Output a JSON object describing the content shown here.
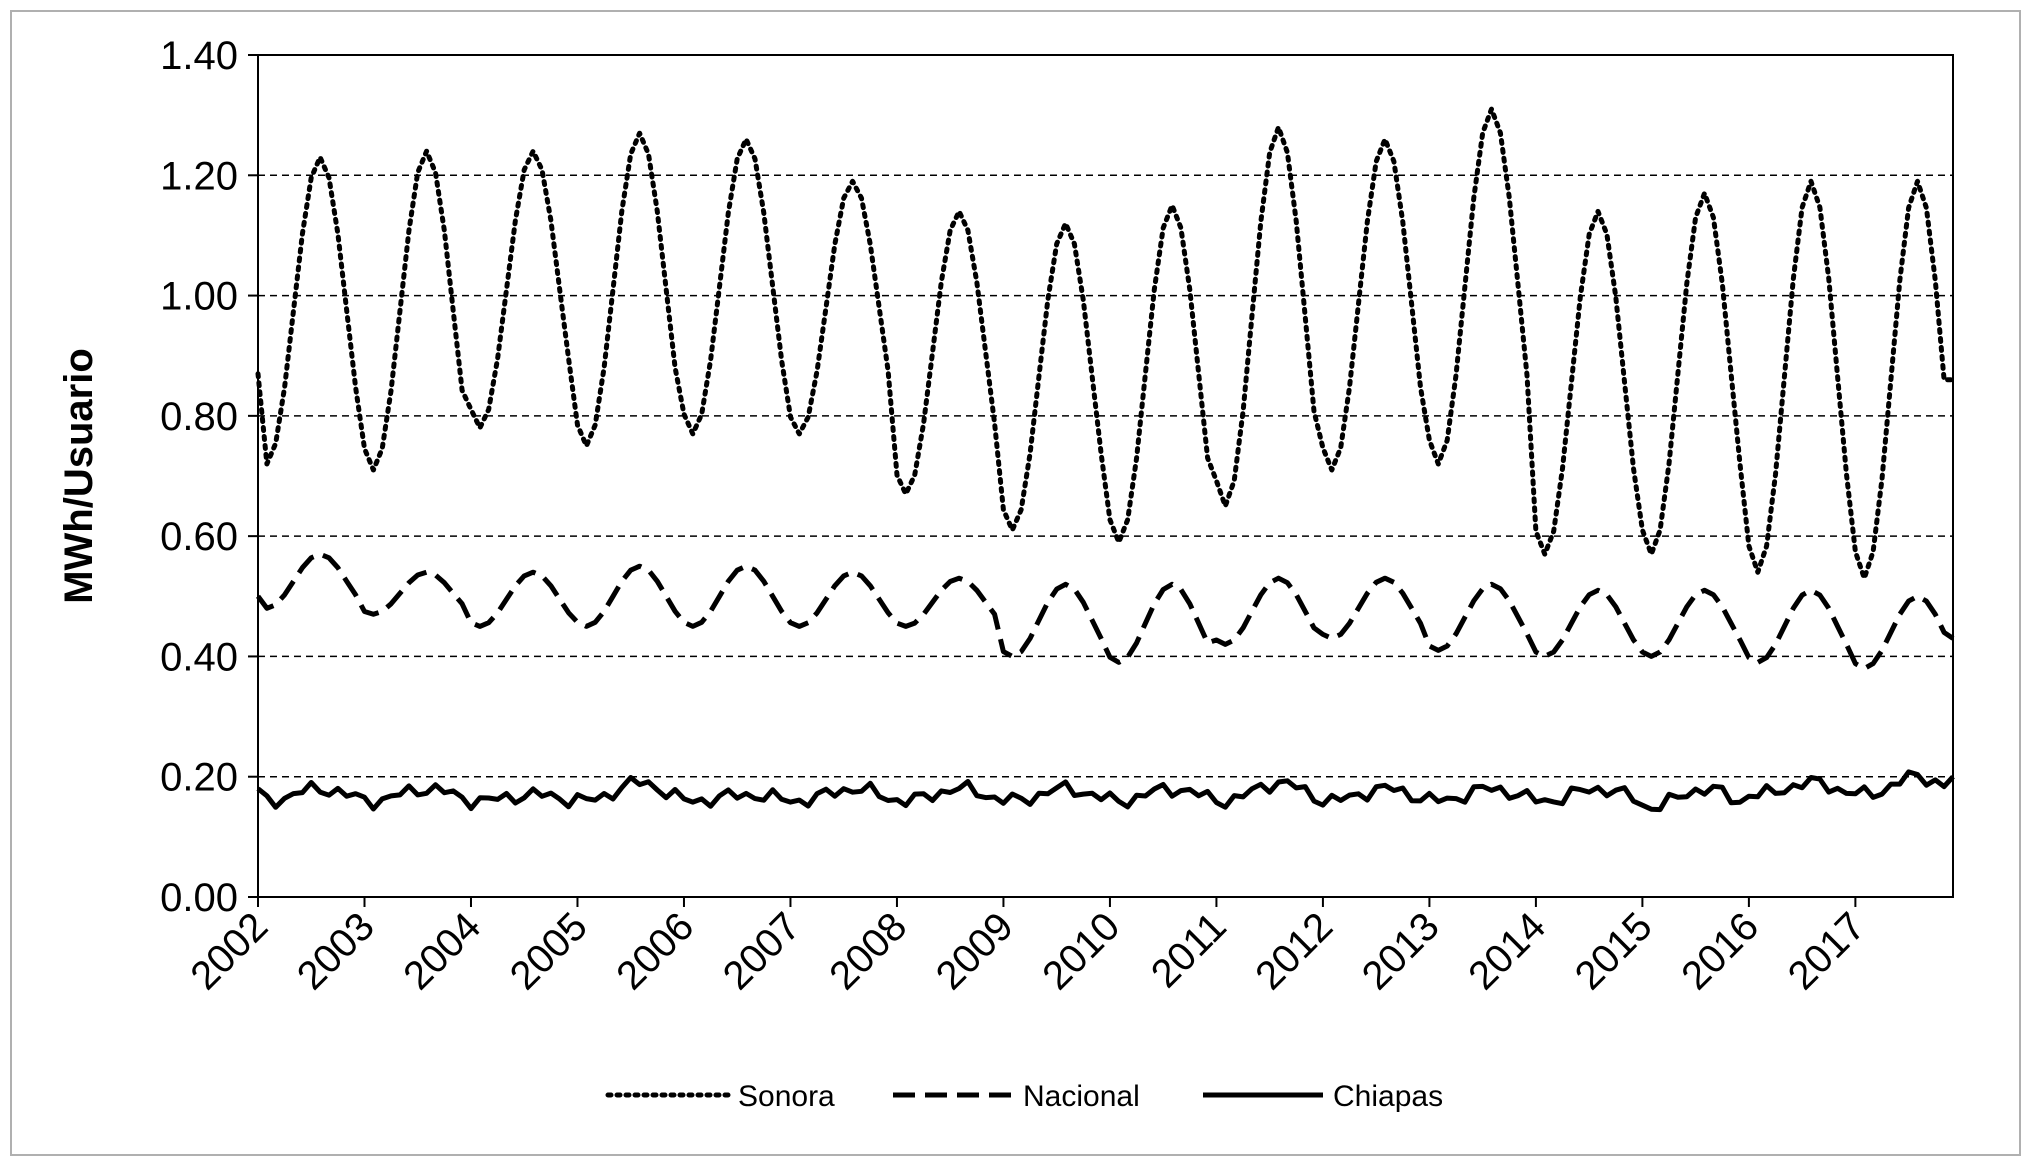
{
  "chart_data": {
    "type": "line",
    "title": "",
    "xlabel": "",
    "ylabel": "MWh/Usuario",
    "ylim": [
      0,
      1.4
    ],
    "yticks": [
      "0.00",
      "0.20",
      "0.40",
      "0.60",
      "0.80",
      "1.00",
      "1.20",
      "1.40"
    ],
    "xticks": [
      "2002",
      "2003",
      "2004",
      "2005",
      "2006",
      "2007",
      "2008",
      "2009",
      "2010",
      "2011",
      "2012",
      "2013",
      "2014",
      "2015",
      "2016",
      "2017"
    ],
    "x_start": "2002-01",
    "x_end": "2017-12",
    "grid": "horizontal dashed",
    "legend_position": "bottom",
    "series": [
      {
        "name": "Sonora",
        "style": "dotted",
        "yearly_min": [
          0.72,
          0.71,
          0.78,
          0.75,
          0.77,
          0.77,
          0.67,
          0.61,
          0.59,
          0.65,
          0.71,
          0.72,
          0.57,
          0.57,
          0.54,
          0.53
        ],
        "yearly_max": [
          1.23,
          1.24,
          1.24,
          1.27,
          1.26,
          1.19,
          1.14,
          1.12,
          1.15,
          1.28,
          1.26,
          1.31,
          1.14,
          1.17,
          1.19,
          1.19
        ],
        "start_value": 0.87,
        "end_value": 0.86
      },
      {
        "name": "Nacional",
        "style": "dashed",
        "yearly_min": [
          0.48,
          0.47,
          0.45,
          0.45,
          0.45,
          0.45,
          0.45,
          0.4,
          0.39,
          0.42,
          0.43,
          0.41,
          0.4,
          0.4,
          0.39,
          0.38
        ],
        "yearly_max": [
          0.57,
          0.54,
          0.54,
          0.55,
          0.55,
          0.54,
          0.53,
          0.52,
          0.52,
          0.53,
          0.53,
          0.52,
          0.51,
          0.51,
          0.51,
          0.5
        ],
        "start_value": 0.5,
        "end_value": 0.43
      },
      {
        "name": "Chiapas",
        "style": "solid",
        "yearly_min": [
          0.16,
          0.16,
          0.16,
          0.16,
          0.16,
          0.16,
          0.16,
          0.16,
          0.16,
          0.16,
          0.16,
          0.16,
          0.16,
          0.15,
          0.17,
          0.17
        ],
        "yearly_max": [
          0.18,
          0.18,
          0.17,
          0.19,
          0.17,
          0.18,
          0.18,
          0.18,
          0.18,
          0.19,
          0.18,
          0.18,
          0.18,
          0.18,
          0.19,
          0.2
        ],
        "start_value": 0.18,
        "end_value": 0.2
      }
    ]
  }
}
